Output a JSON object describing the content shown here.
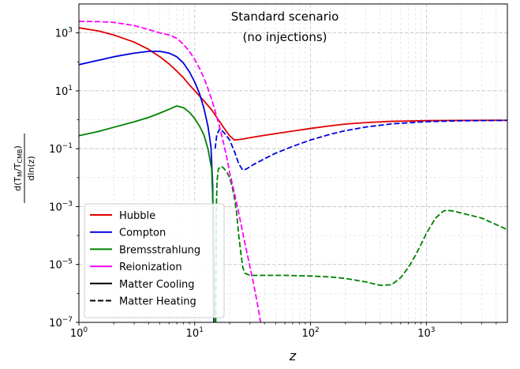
{
  "chart_data": {
    "type": "line",
    "title": "",
    "annotation": [
      "Standard scenario",
      "(no injections)"
    ],
    "xlabel": "z",
    "ylabel": {
      "prefix": "d(T",
      "sub1": "M",
      "mid": "/T",
      "sub2": "CMB",
      "suffix": ")",
      "denominator": "dln(z)"
    },
    "xscale": "log",
    "yscale": "log",
    "xlim": [
      1,
      5000
    ],
    "ylim": [
      1e-07,
      10000
    ],
    "grid": true,
    "legend_position": "lower-left",
    "x_ticks": [
      {
        "value": 1,
        "base": "10",
        "exp": "0"
      },
      {
        "value": 10,
        "base": "10",
        "exp": "1"
      },
      {
        "value": 100,
        "base": "10",
        "exp": "2"
      },
      {
        "value": 1000,
        "base": "10",
        "exp": "3"
      }
    ],
    "y_ticks": [
      {
        "value": 1e-07,
        "base": "10",
        "exp": "−7"
      },
      {
        "value": 1e-05,
        "base": "10",
        "exp": "−5"
      },
      {
        "value": 0.001,
        "base": "10",
        "exp": "−3"
      },
      {
        "value": 0.1,
        "base": "10",
        "exp": "−1"
      },
      {
        "value": 10,
        "base": "10",
        "exp": "1"
      },
      {
        "value": 1000,
        "base": "10",
        "exp": "3"
      }
    ],
    "series": [
      {
        "name": "Hubble",
        "color": "#e00000",
        "segments": [
          {
            "style": "solid",
            "points": [
              [
                1,
                1500
              ],
              [
                1.5,
                1150
              ],
              [
                2,
                850
              ],
              [
                3,
                480
              ],
              [
                4,
                270
              ],
              [
                5,
                150
              ],
              [
                6,
                85
              ],
              [
                7,
                48
              ],
              [
                8,
                28
              ],
              [
                9,
                16
              ],
              [
                10,
                10
              ],
              [
                12,
                4.5
              ],
              [
                14,
                2.2
              ],
              [
                16,
                1
              ],
              [
                18,
                0.5
              ],
              [
                20,
                0.28
              ],
              [
                22,
                0.2
              ],
              [
                25,
                0.21
              ],
              [
                30,
                0.24
              ],
              [
                40,
                0.29
              ],
              [
                60,
                0.37
              ],
              [
                100,
                0.5
              ],
              [
                150,
                0.62
              ],
              [
                200,
                0.71
              ],
              [
                300,
                0.8
              ],
              [
                500,
                0.88
              ],
              [
                1000,
                0.93
              ],
              [
                2000,
                0.95
              ],
              [
                5000,
                0.96
              ]
            ]
          }
        ]
      },
      {
        "name": "Compton",
        "color": "#0000e0",
        "segments": [
          {
            "style": "solid",
            "points": [
              [
                1,
                80
              ],
              [
                1.5,
                115
              ],
              [
                2,
                150
              ],
              [
                3,
                200
              ],
              [
                4,
                230
              ],
              [
                5,
                230
              ],
              [
                6,
                200
              ],
              [
                7,
                150
              ],
              [
                8,
                90
              ],
              [
                9,
                45
              ],
              [
                10,
                20
              ],
              [
                11,
                8
              ],
              [
                12,
                2.5
              ],
              [
                13,
                0.6
              ],
              [
                13.8,
                0.12
              ],
              [
                14.3,
                0.005
              ],
              [
                14.6,
                1e-07
              ]
            ]
          },
          {
            "style": "dashed",
            "points": [
              [
                15,
                0.1
              ],
              [
                15.5,
                0.3
              ],
              [
                16.5,
                0.5
              ],
              [
                18,
                0.35
              ],
              [
                20,
                0.2
              ],
              [
                22,
                0.08
              ],
              [
                24,
                0.03
              ],
              [
                26,
                0.018
              ],
              [
                28,
                0.02
              ],
              [
                32,
                0.028
              ],
              [
                40,
                0.045
              ],
              [
                50,
                0.07
              ],
              [
                70,
                0.12
              ],
              [
                100,
                0.2
              ],
              [
                150,
                0.32
              ],
              [
                200,
                0.42
              ],
              [
                300,
                0.56
              ],
              [
                500,
                0.72
              ],
              [
                1000,
                0.86
              ],
              [
                2000,
                0.92
              ],
              [
                5000,
                0.95
              ]
            ]
          }
        ]
      },
      {
        "name": "Bremsstrahlung",
        "color": "#008000",
        "segments": [
          {
            "style": "solid",
            "points": [
              [
                1,
                0.28
              ],
              [
                1.5,
                0.4
              ],
              [
                2,
                0.55
              ],
              [
                3,
                0.85
              ],
              [
                4,
                1.2
              ],
              [
                5,
                1.7
              ],
              [
                6,
                2.3
              ],
              [
                7,
                3
              ],
              [
                8,
                2.6
              ],
              [
                9,
                1.8
              ],
              [
                10,
                1.1
              ],
              [
                11,
                0.6
              ],
              [
                12,
                0.3
              ],
              [
                13,
                0.1
              ],
              [
                14,
                0.02
              ],
              [
                14.5,
                0.0004
              ],
              [
                14.8,
                1e-07
              ]
            ]
          },
          {
            "style": "dashed",
            "points": [
              [
                15.2,
                1e-07
              ],
              [
                15.3,
                0.0005
              ],
              [
                15.6,
                0.008
              ],
              [
                16,
                0.02
              ],
              [
                17,
                0.025
              ],
              [
                18,
                0.02
              ],
              [
                19,
                0.015
              ],
              [
                20,
                0.01
              ],
              [
                21,
                0.005
              ],
              [
                22,
                0.002
              ],
              [
                23,
                0.0006
              ],
              [
                24,
                0.0001
              ],
              [
                25,
                2.5e-05
              ],
              [
                26,
                8e-06
              ],
              [
                27,
                5e-06
              ],
              [
                30,
                4.2e-06
              ],
              [
                40,
                4.2e-06
              ],
              [
                60,
                4.2e-06
              ],
              [
                100,
                4e-06
              ],
              [
                150,
                3.7e-06
              ],
              [
                200,
                3.3e-06
              ],
              [
                300,
                2.5e-06
              ],
              [
                400,
                1.9e-06
              ],
              [
                500,
                2e-06
              ],
              [
                600,
                3.5e-06
              ],
              [
                700,
                8e-06
              ],
              [
                800,
                2e-05
              ],
              [
                900,
                5e-05
              ],
              [
                1000,
                0.00012
              ],
              [
                1200,
                0.0004
              ],
              [
                1400,
                0.0007
              ],
              [
                1500,
                0.00075
              ],
              [
                1700,
                0.0007
              ],
              [
                2000,
                0.0006
              ],
              [
                3000,
                0.0004
              ],
              [
                5000,
                0.00016
              ]
            ]
          }
        ]
      },
      {
        "name": "Reionization",
        "color": "#ff00ff",
        "segments": [
          {
            "style": "dashed",
            "points": [
              [
                1,
                2500
              ],
              [
                1.5,
                2450
              ],
              [
                2,
                2300
              ],
              [
                3,
                1800
              ],
              [
                4,
                1300
              ],
              [
                5,
                1000
              ],
              [
                6,
                850
              ],
              [
                7,
                650
              ],
              [
                8,
                400
              ],
              [
                9,
                230
              ],
              [
                10,
                120
              ],
              [
                11,
                60
              ],
              [
                12,
                28
              ],
              [
                13,
                12
              ],
              [
                14,
                5
              ],
              [
                15,
                2
              ],
              [
                16,
                0.8
              ],
              [
                17,
                0.32
              ],
              [
                18,
                0.12
              ],
              [
                19,
                0.045
              ],
              [
                20,
                0.015
              ],
              [
                22,
                0.003
              ],
              [
                24,
                0.0006
              ],
              [
                26,
                0.00012
              ],
              [
                28,
                3e-05
              ],
              [
                30,
                8e-06
              ],
              [
                32,
                2.5e-06
              ],
              [
                34,
                7e-07
              ],
              [
                36,
                2e-07
              ],
              [
                37,
                1e-07
              ]
            ]
          }
        ]
      }
    ],
    "legend": [
      {
        "label": "Hubble",
        "color": "#e00000",
        "style": "solid"
      },
      {
        "label": "Compton",
        "color": "#0000e0",
        "style": "solid"
      },
      {
        "label": "Bremsstrahlung",
        "color": "#008000",
        "style": "solid"
      },
      {
        "label": "Reionization",
        "color": "#ff00ff",
        "style": "solid"
      },
      {
        "label": "Matter Cooling",
        "color": "#000000",
        "style": "solid"
      },
      {
        "label": "Matter Heating",
        "color": "#000000",
        "style": "dashed"
      }
    ]
  }
}
